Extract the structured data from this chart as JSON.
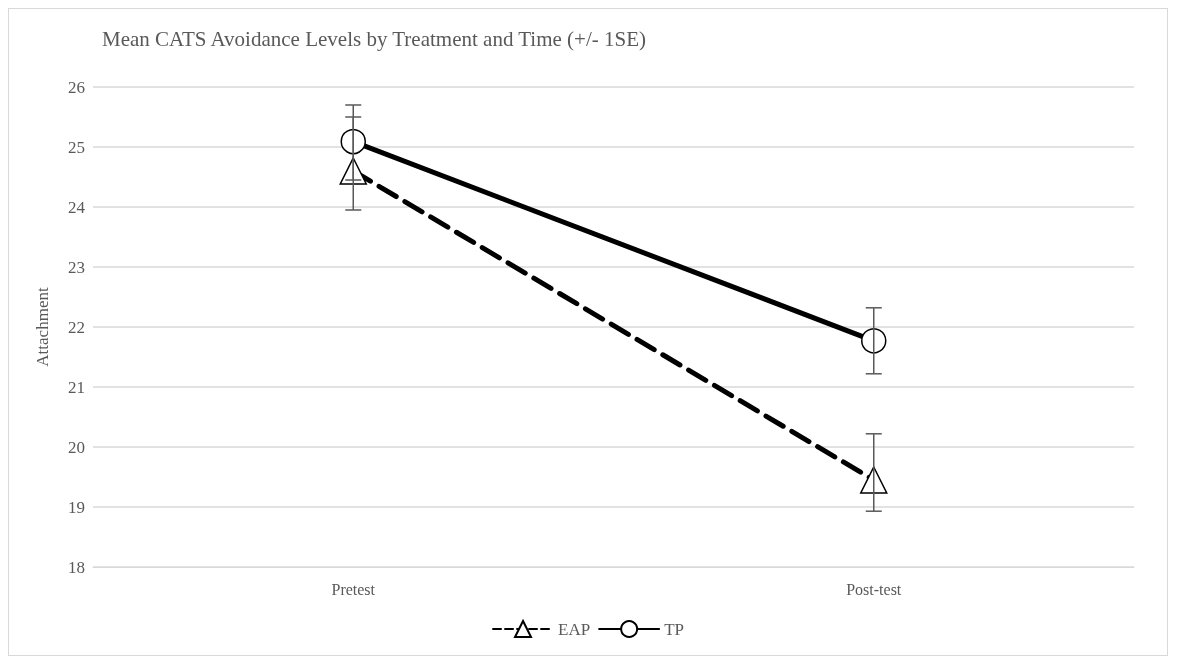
{
  "chart_data": {
    "type": "line",
    "title": "Mean CATS Avoidance Levels by Treatment and Time (+/- 1SE)",
    "ylabel": "Attachment",
    "categories": [
      "Pretest",
      "Post-test"
    ],
    "series": [
      {
        "name": "EAP",
        "color": "#000000",
        "values": [
          24.6,
          19.45
        ],
        "marker": "triangle",
        "line_style": "dashed",
        "errors": [
          [
            23.95,
            25.5
          ],
          [
            18.93,
            20.22
          ]
        ]
      },
      {
        "name": "TP",
        "color": "#000000",
        "values": [
          25.09,
          21.77
        ],
        "marker": "circle",
        "line_style": "solid",
        "errors": [
          [
            24.45,
            25.7
          ],
          [
            21.22,
            22.32
          ]
        ]
      }
    ],
    "ylim": [
      18,
      26
    ],
    "yticks": [
      18,
      19,
      20,
      21,
      22,
      23,
      24,
      25,
      26
    ],
    "grid": "y",
    "legend": "bottom"
  }
}
